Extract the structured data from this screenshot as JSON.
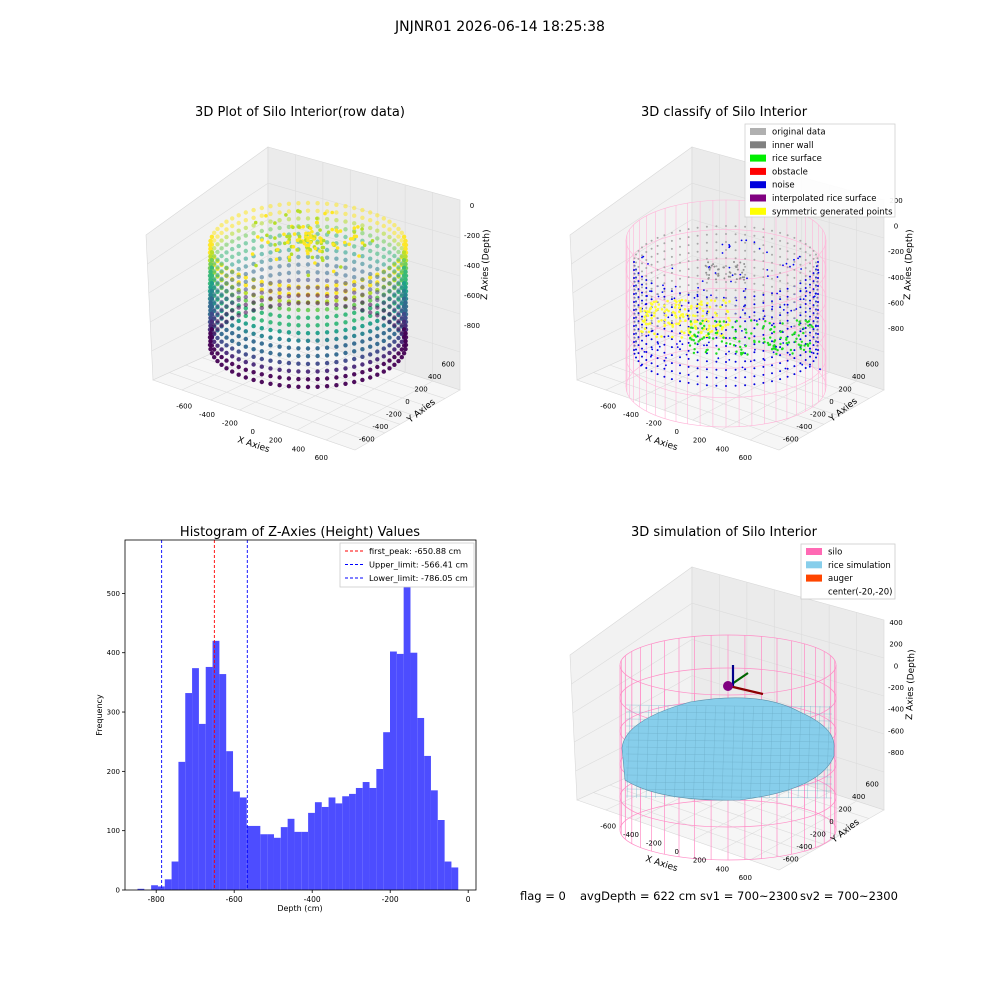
{
  "suptitle": "JNJNR01 2026-06-14 18:25:38",
  "footer": {
    "flag": "flag = 0",
    "avg": "avgDepth = 622 cm",
    "sv1": "sv1 = 700~2300",
    "sv2": "sv2 = 700~2300"
  },
  "panels": {
    "raw": {
      "title": "3D Plot of Silo Interior(row data)",
      "xlabel": "X Axies",
      "ylabel": "Y Axies",
      "zlabel": "Z Axies (Depth)",
      "xticks": [
        "-600",
        "-400",
        "-200",
        "0",
        "200",
        "400",
        "600"
      ],
      "yticks": [
        "-600",
        "-400",
        "-200",
        "0",
        "200",
        "400",
        "600"
      ],
      "zticks": [
        "0",
        "-200",
        "-400",
        "-600",
        "-800"
      ]
    },
    "classify": {
      "title": "3D classify of Silo Interior",
      "xlabel": "X Axies",
      "ylabel": "Y Axies",
      "zlabel": "Z Axies (Depth)",
      "xticks": [
        "-600",
        "-400",
        "-200",
        "0",
        "200",
        "400",
        "600"
      ],
      "yticks": [
        "-600",
        "-400",
        "-200",
        "0",
        "200",
        "400",
        "600"
      ],
      "zticks": [
        "200",
        "0",
        "-200",
        "-400",
        "-600",
        "-800"
      ],
      "zticks_first": "200",
      "legend": [
        {
          "label": "original data",
          "color": "#b0b0b0"
        },
        {
          "label": "inner wall",
          "color": "#808080"
        },
        {
          "label": "rice surface",
          "color": "#00ee00"
        },
        {
          "label": "obstacle",
          "color": "#ff0000"
        },
        {
          "label": "noise",
          "color": "#0000dd"
        },
        {
          "label": "interpolated rice surface",
          "color": "#800080"
        },
        {
          "label": "symmetric generated points",
          "color": "#ffff00"
        }
      ]
    },
    "sim": {
      "title": "3D simulation of Silo Interior",
      "xlabel": "X Axies",
      "ylabel": "Y Axies",
      "zlabel": "Z Axies (Depth)",
      "xticks": [
        "-600",
        "-400",
        "-200",
        "0",
        "200",
        "400",
        "600"
      ],
      "yticks": [
        "-600",
        "-400",
        "-200",
        "0",
        "200",
        "400",
        "600"
      ],
      "zticks": [
        "400",
        "200",
        "0",
        "-200",
        "-400",
        "-600",
        "-800"
      ],
      "legend": [
        {
          "label": "silo",
          "color": "#ff69b4"
        },
        {
          "label": "rice simulation",
          "color": "#87ceeb"
        },
        {
          "label": "auger",
          "color": "#ff4500"
        },
        {
          "label": "center(-20,-20)",
          "color": ""
        }
      ]
    }
  },
  "chart_data": {
    "type": "bar",
    "title": "Histogram of Z-Axies (Height) Values",
    "xlabel": "Depth (cm)",
    "ylabel": "Frequency",
    "xlim": [
      -880,
      20
    ],
    "ylim": [
      0,
      590
    ],
    "xticks": [
      -800,
      -600,
      -400,
      -200,
      0
    ],
    "yticks": [
      0,
      100,
      200,
      300,
      400,
      500
    ],
    "bin_width": 17.5,
    "bin_starts": [
      -848,
      -830.5,
      -813,
      -795.5,
      -778,
      -760.5,
      -743,
      -725.5,
      -708,
      -690.5,
      -673,
      -655.5,
      -638,
      -620.5,
      -603,
      -585.5,
      -568,
      -550.5,
      -533,
      -515.5,
      -498,
      -480.5,
      -463,
      -445.5,
      -428,
      -410.5,
      -393,
      -375.5,
      -358,
      -340.5,
      -323,
      -305.5,
      -288,
      -270.5,
      -253,
      -235.5,
      -218,
      -200.5,
      -183,
      -165.5,
      -148,
      -130.5,
      -113,
      -95.5,
      -78,
      -60.5,
      -43,
      -25.5,
      -8
    ],
    "values": [
      2,
      0,
      8,
      6,
      18,
      48,
      216,
      332,
      374,
      280,
      376,
      420,
      364,
      234,
      166,
      156,
      108,
      108,
      94,
      94,
      88,
      106,
      120,
      98,
      98,
      130,
      148,
      140,
      156,
      146,
      158,
      162,
      172,
      182,
      172,
      204,
      266,
      402,
      398,
      560,
      400,
      290,
      226,
      168,
      118,
      48,
      38,
      0,
      0
    ],
    "vlines": [
      {
        "label": "first_peak: -650.88 cm",
        "x": -650.88,
        "color": "#ff0000"
      },
      {
        "label": "Upper_limit: -566.41 cm",
        "x": -566.41,
        "color": "#0000ff"
      },
      {
        "label": "Lower_limit: -786.05 cm",
        "x": -786.05,
        "color": "#0000ff"
      }
    ],
    "bar_color": "#4d4dff"
  }
}
